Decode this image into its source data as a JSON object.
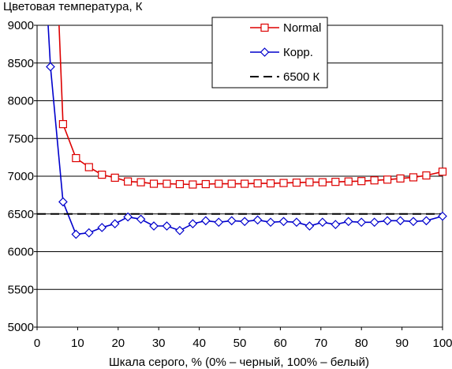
{
  "chart_data": {
    "type": "line",
    "title": "Цветовая температура, К",
    "xlabel": "Шкала серого, % (0% – черный, 100% – белый)",
    "ylabel": "",
    "xlim": [
      0,
      100
    ],
    "ylim": [
      5000,
      9000
    ],
    "x_ticks": [
      0,
      10,
      20,
      30,
      40,
      50,
      60,
      70,
      80,
      90,
      100
    ],
    "y_ticks": [
      5000,
      5500,
      6000,
      6500,
      7000,
      7500,
      8000,
      8500,
      9000
    ],
    "grid": "horizontal",
    "legend_position": "top-center",
    "series": [
      {
        "name": "Normal",
        "color": "#dd0000",
        "marker": "square",
        "points": [
          [
            2.8,
            12500
          ],
          [
            6.4,
            7690
          ],
          [
            9.6,
            7240
          ],
          [
            12.8,
            7120
          ],
          [
            16,
            7020
          ],
          [
            19.2,
            6980
          ],
          [
            22.4,
            6930
          ],
          [
            25.6,
            6920
          ],
          [
            28.8,
            6900
          ],
          [
            32,
            6900
          ],
          [
            35.2,
            6895
          ],
          [
            38.4,
            6890
          ],
          [
            41.6,
            6895
          ],
          [
            44.8,
            6900
          ],
          [
            48,
            6900
          ],
          [
            51.2,
            6900
          ],
          [
            54.4,
            6905
          ],
          [
            57.6,
            6905
          ],
          [
            60.8,
            6910
          ],
          [
            64,
            6915
          ],
          [
            67.2,
            6920
          ],
          [
            70.4,
            6920
          ],
          [
            73.6,
            6925
          ],
          [
            76.8,
            6930
          ],
          [
            80,
            6935
          ],
          [
            83.2,
            6945
          ],
          [
            86.4,
            6955
          ],
          [
            89.6,
            6970
          ],
          [
            92.8,
            6985
          ],
          [
            96,
            7010
          ],
          [
            100,
            7060
          ]
        ]
      },
      {
        "name": "Корр.",
        "color": "#0000cc",
        "marker": "diamond",
        "points": [
          [
            2.2,
            9500
          ],
          [
            3.3,
            8450
          ],
          [
            6.4,
            6660
          ],
          [
            9.6,
            6230
          ],
          [
            12.8,
            6250
          ],
          [
            16,
            6320
          ],
          [
            19.2,
            6370
          ],
          [
            22.4,
            6460
          ],
          [
            25.6,
            6430
          ],
          [
            28.8,
            6340
          ],
          [
            32,
            6340
          ],
          [
            35.2,
            6280
          ],
          [
            38.4,
            6370
          ],
          [
            41.6,
            6410
          ],
          [
            44.8,
            6390
          ],
          [
            48,
            6410
          ],
          [
            51.2,
            6400
          ],
          [
            54.4,
            6420
          ],
          [
            57.6,
            6390
          ],
          [
            60.8,
            6400
          ],
          [
            64,
            6390
          ],
          [
            67.2,
            6340
          ],
          [
            70.4,
            6390
          ],
          [
            73.6,
            6360
          ],
          [
            76.8,
            6400
          ],
          [
            80,
            6390
          ],
          [
            83.2,
            6390
          ],
          [
            86.4,
            6410
          ],
          [
            89.6,
            6410
          ],
          [
            92.8,
            6400
          ],
          [
            96,
            6410
          ],
          [
            100,
            6470
          ]
        ]
      },
      {
        "name": "6500 К",
        "color": "#000000",
        "style": "dashed",
        "points": [
          [
            0,
            6500
          ],
          [
            100,
            6500
          ]
        ]
      }
    ]
  }
}
